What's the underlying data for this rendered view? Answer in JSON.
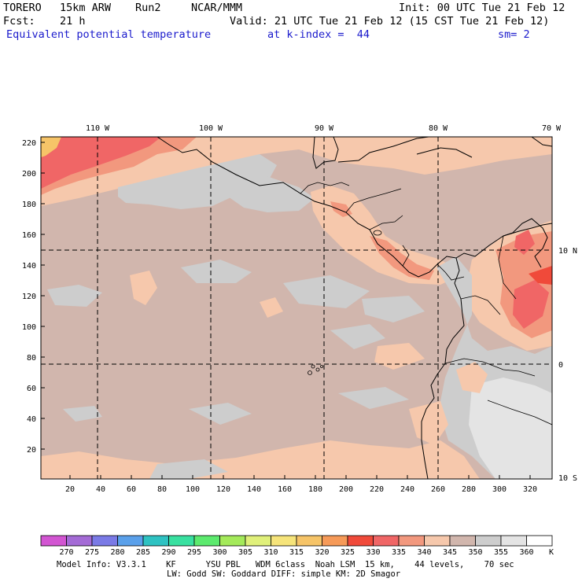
{
  "header": {
    "model": "TORERO",
    "resolution": "15km ARW",
    "run": "Run2",
    "org": "NCAR/MMM",
    "init": "Init: 00 UTC Tue 21 Feb 12",
    "fcst_label": "Fcst:",
    "fcst_value": "21 h",
    "valid": "Valid: 21 UTC Tue 21 Feb 12 (15 CST Tue 21 Feb 12)",
    "field": "Equivalent potential temperature",
    "level": "at k-index =  44",
    "smooth": "sm= 2"
  },
  "map": {
    "top_longitude_labels": [
      "110 W",
      "100 W",
      "90 W",
      "80 W",
      "70 W"
    ],
    "right_latitude_labels": [
      "10 N",
      "0",
      "10 S"
    ],
    "left_grid_labels": [
      "220",
      "200",
      "180",
      "160",
      "140",
      "120",
      "100",
      "80",
      "60",
      "40",
      "20"
    ],
    "bottom_grid_labels": [
      "20",
      "40",
      "60",
      "80",
      "100",
      "120",
      "140",
      "160",
      "180",
      "200",
      "220",
      "240",
      "260",
      "280",
      "300",
      "320"
    ],
    "background_value": "345",
    "colors": {
      "c340": "#f6c8ac",
      "c345": "#d1b6ad",
      "c350": "#cdcdcd",
      "c355": "#e4e4e4",
      "c330": "#f06666",
      "c335": "#f2987e",
      "c325": "#f04a3a"
    }
  },
  "colorbar": {
    "labels": [
      "270",
      "275",
      "280",
      "285",
      "290",
      "295",
      "300",
      "305",
      "310",
      "315",
      "320",
      "325",
      "330",
      "335",
      "340",
      "345",
      "350",
      "355",
      "360"
    ],
    "unit": "K",
    "colors": [
      "#d255d2",
      "#a46bd6",
      "#7a7ae6",
      "#5aa0ea",
      "#2ec2c2",
      "#38e0a0",
      "#5cea6e",
      "#a4ea5a",
      "#e0f07a",
      "#f6e47a",
      "#f6c468",
      "#f69a58",
      "#f04a3a",
      "#f06666",
      "#f2987e",
      "#f6c8ac",
      "#d1b6ad",
      "#cdcdcd",
      "#e4e4e4",
      "#ffffff"
    ]
  },
  "footer": {
    "line1": "Model Info: V3.3.1    KF      YSU PBL   WDM 6class  Noah LSM  15 km,    44 levels,    70 sec",
    "line2": "LW: Godd SW: Goddard DIFF: simple KM: 2D Smagor"
  }
}
